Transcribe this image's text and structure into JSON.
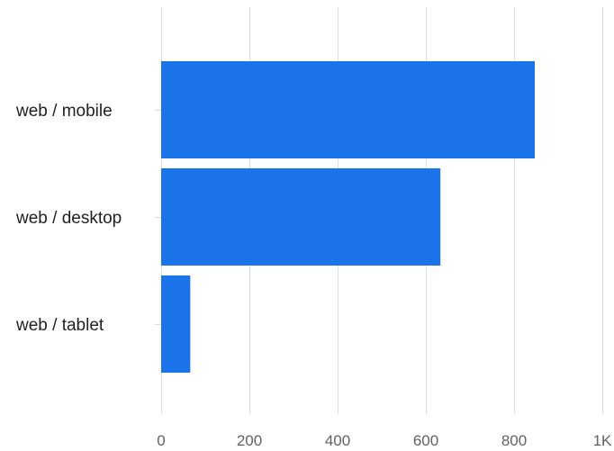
{
  "chart_data": {
    "type": "bar",
    "orientation": "horizontal",
    "categories": [
      "web / mobile",
      "web / desktop",
      "web / tablet"
    ],
    "values": [
      847,
      633,
      66
    ],
    "xlim": [
      0,
      1000
    ],
    "x_ticks": [
      0,
      200,
      400,
      600,
      800,
      1000
    ],
    "x_tick_labels": [
      "0",
      "200",
      "400",
      "600",
      "800",
      "1K"
    ],
    "title": "",
    "xlabel": "",
    "ylabel": "",
    "grid": true,
    "legend": "none",
    "bar_color": "#1a73e8",
    "grid_color": "#dadce0",
    "label_color": "#202124",
    "tick_label_color": "#5f6368"
  }
}
